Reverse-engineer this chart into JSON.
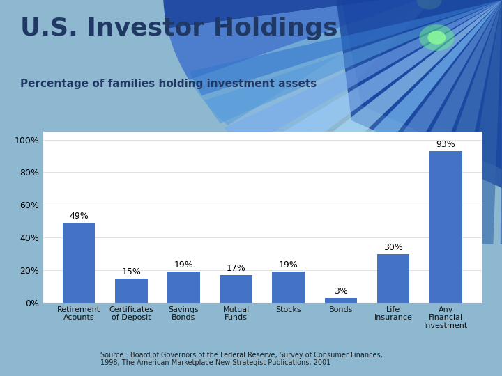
{
  "title": "U.S. Investor Holdings",
  "subtitle": "Percentage of families holding investment assets",
  "categories": [
    "Retirement\nAcounts",
    "Certificates\nof Deposit",
    "Savings\nBonds",
    "Mutual\nFunds",
    "Stocks",
    "Bonds",
    "Life\nInsurance",
    "Any\nFinancial\nInvestment"
  ],
  "values": [
    49,
    15,
    19,
    17,
    19,
    3,
    30,
    93
  ],
  "bar_color": "#4472C4",
  "background_color": "#8DB8D0",
  "chart_bg": "#FFFFFF",
  "title_color": "#1F3864",
  "subtitle_color": "#1F3864",
  "yticks": [
    0,
    20,
    40,
    60,
    80,
    100
  ],
  "ytick_labels": [
    "0%",
    "20%",
    "40%",
    "60%",
    "80%",
    "100%"
  ],
  "ylim": [
    0,
    105
  ],
  "source_text": "Source:  Board of Governors of the Federal Reserve, Survey of Consumer Finances,\n1998; The American Marketplace New Strategist Publications, 2001",
  "title_fontsize": 26,
  "subtitle_fontsize": 11,
  "bar_label_fontsize": 9,
  "tick_fontsize": 9,
  "xtick_fontsize": 8
}
